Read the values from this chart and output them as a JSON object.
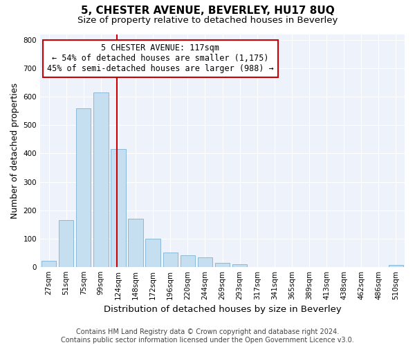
{
  "title": "5, CHESTER AVENUE, BEVERLEY, HU17 8UQ",
  "subtitle": "Size of property relative to detached houses in Beverley",
  "xlabel": "Distribution of detached houses by size in Beverley",
  "ylabel": "Number of detached properties",
  "bar_labels": [
    "27sqm",
    "51sqm",
    "75sqm",
    "99sqm",
    "124sqm",
    "148sqm",
    "172sqm",
    "196sqm",
    "220sqm",
    "244sqm",
    "269sqm",
    "293sqm",
    "317sqm",
    "341sqm",
    "365sqm",
    "389sqm",
    "413sqm",
    "438sqm",
    "462sqm",
    "486sqm",
    "510sqm"
  ],
  "bar_values": [
    20,
    165,
    560,
    615,
    415,
    170,
    100,
    50,
    40,
    33,
    13,
    10,
    0,
    0,
    0,
    0,
    0,
    0,
    0,
    0,
    7
  ],
  "bar_color": "#c5dff0",
  "bar_edge_color": "#8ab8d8",
  "vline_index": 4,
  "vline_color": "#cc0000",
  "annotation_title": "5 CHESTER AVENUE: 117sqm",
  "annotation_line1": "← 54% of detached houses are smaller (1,175)",
  "annotation_line2": "45% of semi-detached houses are larger (988) →",
  "annotation_box_facecolor": "#ffffff",
  "annotation_box_edgecolor": "#cc0000",
  "ylim": [
    0,
    820
  ],
  "yticks": [
    0,
    100,
    200,
    300,
    400,
    500,
    600,
    700,
    800
  ],
  "footer_line1": "Contains HM Land Registry data © Crown copyright and database right 2024.",
  "footer_line2": "Contains public sector information licensed under the Open Government Licence v3.0.",
  "bg_color": "#ffffff",
  "plot_bg_color": "#eef2fb",
  "grid_color": "#ffffff",
  "title_fontsize": 11,
  "subtitle_fontsize": 9.5,
  "ylabel_fontsize": 9,
  "xlabel_fontsize": 9.5,
  "tick_fontsize": 7.5,
  "annotation_fontsize": 8.5,
  "footer_fontsize": 7
}
